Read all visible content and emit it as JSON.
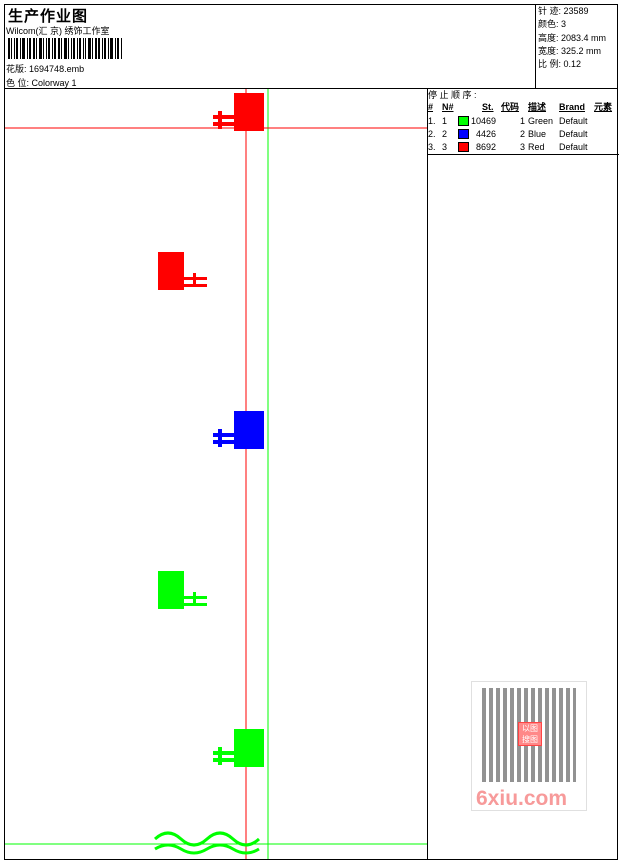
{
  "header": {
    "title": "生产作业图",
    "company": "Wilcom(汇 京) 绣饰工作室",
    "design_label": "花版:",
    "design_value": "1694748.emb",
    "colorway_label": "色 位:",
    "colorway_value": "Colorway 1"
  },
  "info": [
    {
      "label": "针 迹:",
      "value": "23589"
    },
    {
      "label": "颜色:",
      "value": "3"
    },
    {
      "label": "高度:",
      "value": "2083.4 mm"
    },
    {
      "label": "宽度:",
      "value": "325.2 mm"
    },
    {
      "label": "比 例:",
      "value": "0.12"
    }
  ],
  "stop_sequence": {
    "title": "停 止 顺 序 :",
    "columns": [
      "#",
      "N#",
      "St.",
      "代码",
      "描述",
      "Brand",
      "元素"
    ],
    "rows": [
      {
        "idx": "1.",
        "n": "1",
        "color": "#00ff00",
        "st": "10469",
        "code": "1",
        "desc": "Green",
        "brand": "Default"
      },
      {
        "idx": "2.",
        "n": "2",
        "color": "#0000ff",
        "st": "4426",
        "code": "2",
        "desc": "Blue",
        "brand": "Default"
      },
      {
        "idx": "3.",
        "n": "3",
        "color": "#ff0000",
        "st": "8692",
        "code": "3",
        "desc": "Red",
        "brand": "Default"
      }
    ]
  },
  "watermark": {
    "text": "6xiu.com",
    "seal": "以图搜图"
  },
  "colors": {
    "red": "#ff0000",
    "green": "#00ff00",
    "blue": "#0000ff"
  }
}
